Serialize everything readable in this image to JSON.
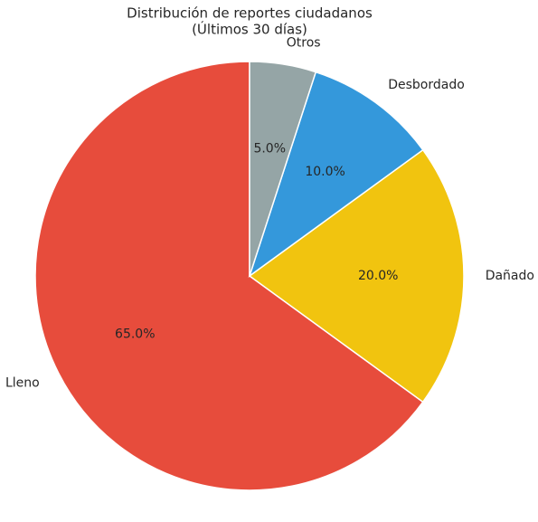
{
  "chart_data": {
    "type": "pie",
    "title": "Distribución de reportes ciudadanos",
    "subtitle": "(Últimos 30 días)",
    "categories": [
      "Lleno",
      "Dañado",
      "Desbordado",
      "Otros"
    ],
    "values": [
      65,
      20,
      10,
      5
    ],
    "value_labels": [
      "65.0%",
      "20.0%",
      "10.0%",
      "5.0%"
    ],
    "colors": [
      "#e74c3c",
      "#f1c40f",
      "#3498db",
      "#95a5a6"
    ],
    "start_angle": 90,
    "direction": "counterclockwise"
  }
}
